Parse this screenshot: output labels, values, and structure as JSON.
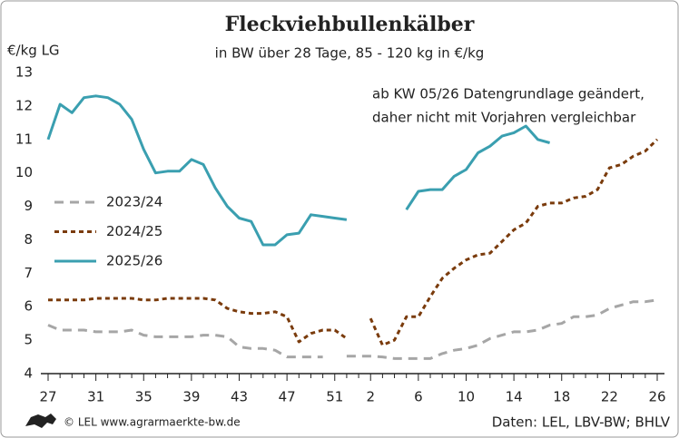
{
  "chart_data": {
    "type": "line",
    "title": "Fleckviehbullenkälber",
    "subtitle": "in BW über 28 Tage, 85 - 120 kg in €/kg",
    "y_label": "€/kg LG",
    "annotation": [
      "ab KW 05/26 Datengrundlage geändert,",
      "daher nicht mit Vorjahren vergleichbar"
    ],
    "credit": "© LEL www.agrarmaerkte-bw.de",
    "source": "Daten: LEL, LBV-BW; BHLV",
    "categories": [
      "27",
      null,
      null,
      null,
      "31",
      null,
      null,
      null,
      "35",
      null,
      null,
      null,
      "39",
      null,
      null,
      null,
      "43",
      null,
      null,
      null,
      "47",
      null,
      null,
      null,
      "51",
      null,
      null,
      "2",
      null,
      null,
      null,
      "6",
      null,
      null,
      null,
      "10",
      null,
      null,
      null,
      "14",
      null,
      null,
      null,
      "18",
      null,
      null,
      null,
      "22",
      null,
      null,
      null,
      "26"
    ],
    "ylim": [
      4,
      13
    ],
    "yticks": [
      4,
      5,
      6,
      7,
      8,
      9,
      10,
      11,
      12,
      13
    ],
    "grid": false,
    "series": [
      {
        "name": "2023/24",
        "color": "#a6a6a6",
        "dash": "10,7",
        "values": [
          5.45,
          5.3,
          5.3,
          5.3,
          5.25,
          5.25,
          5.25,
          5.3,
          5.15,
          5.1,
          5.1,
          5.1,
          5.1,
          5.15,
          5.15,
          5.1,
          4.8,
          4.75,
          4.75,
          4.7,
          4.5,
          4.5,
          4.5,
          4.5,
          null,
          4.52,
          4.52,
          4.52,
          4.5,
          4.45,
          4.45,
          4.45,
          4.45,
          4.6,
          4.7,
          4.75,
          4.85,
          5.05,
          5.15,
          5.25,
          5.25,
          5.3,
          5.45,
          5.5,
          5.7,
          5.7,
          5.75,
          5.95,
          6.05,
          6.15,
          6.15,
          6.2
        ]
      },
      {
        "name": "2024/25",
        "color": "#7a3b0c",
        "dash": "5,4",
        "values": [
          6.2,
          6.2,
          6.2,
          6.2,
          6.25,
          6.25,
          6.25,
          6.25,
          6.2,
          6.2,
          6.25,
          6.25,
          6.25,
          6.25,
          6.2,
          5.95,
          5.85,
          5.8,
          5.8,
          5.85,
          5.7,
          4.95,
          5.2,
          5.3,
          5.3,
          5.05,
          null,
          5.65,
          4.85,
          5.0,
          5.7,
          5.7,
          6.3,
          6.85,
          7.15,
          7.4,
          7.55,
          7.6,
          7.95,
          8.3,
          8.5,
          9.0,
          9.1,
          9.1,
          9.25,
          9.3,
          9.5,
          10.15,
          10.25,
          10.5,
          10.65,
          11.0
        ]
      },
      {
        "name": "2025/26",
        "color": "#3a9fb0",
        "dash": "",
        "values": [
          11.0,
          12.05,
          11.8,
          12.25,
          12.3,
          12.25,
          12.05,
          11.6,
          10.7,
          10.0,
          10.05,
          10.05,
          10.4,
          10.25,
          9.55,
          9.0,
          8.65,
          8.55,
          7.85,
          7.85,
          8.15,
          8.2,
          8.75,
          8.7,
          8.65,
          8.6,
          null,
          null,
          null,
          null,
          8.9,
          9.45,
          9.5,
          9.5,
          9.9,
          10.1,
          10.6,
          10.8,
          11.1,
          11.2,
          11.4,
          11.0,
          10.9,
          null,
          null,
          null,
          null,
          null,
          null,
          null,
          null,
          null
        ]
      }
    ]
  }
}
